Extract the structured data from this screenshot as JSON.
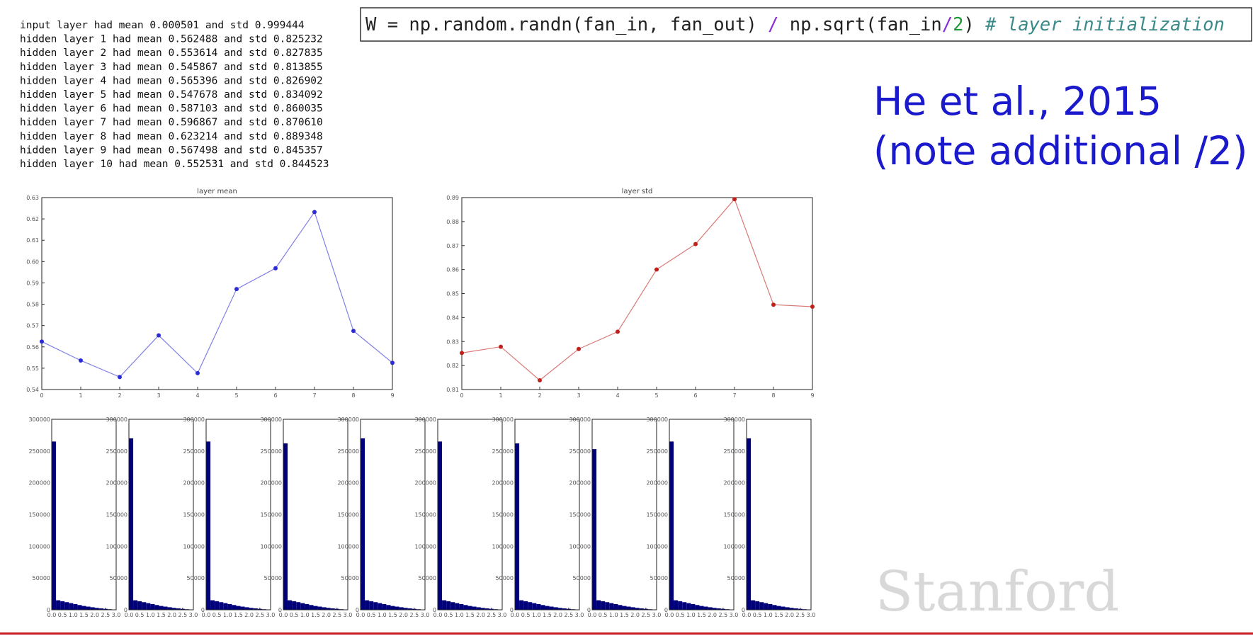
{
  "log": [
    "input layer had mean 0.000501 and std 0.999444",
    "hidden layer 1 had mean 0.562488 and std 0.825232",
    "hidden layer 2 had mean 0.553614 and std 0.827835",
    "hidden layer 3 had mean 0.545867 and std 0.813855",
    "hidden layer 4 had mean 0.565396 and std 0.826902",
    "hidden layer 5 had mean 0.547678 and std 0.834092",
    "hidden layer 6 had mean 0.587103 and std 0.860035",
    "hidden layer 7 had mean 0.596867 and std 0.870610",
    "hidden layer 8 had mean 0.623214 and std 0.889348",
    "hidden layer 9 had mean 0.567498 and std 0.845357",
    "hidden layer 10 had mean 0.552531 and std 0.844523"
  ],
  "code": [
    "W = np.random.randn(fan_in, fan_out) ",
    "/",
    " np.sqrt(fan_in",
    "/",
    "2",
    ")",
    " # layer initialization"
  ],
  "note": [
    "He et al., 2015",
    "(note additional /2)"
  ],
  "logo": "Stanford",
  "chart_data": [
    {
      "type": "line",
      "title": "layer mean",
      "x": [
        0,
        1,
        2,
        3,
        4,
        5,
        6,
        7,
        8,
        9
      ],
      "values": [
        0.562488,
        0.553614,
        0.545867,
        0.565396,
        0.547678,
        0.587103,
        0.596867,
        0.623214,
        0.567498,
        0.552531
      ],
      "color": "#2b2bd6",
      "xlim": [
        0,
        9
      ],
      "xticks": [
        0,
        1,
        2,
        3,
        4,
        5,
        6,
        7,
        8,
        9
      ],
      "ylim": [
        0.54,
        0.63
      ],
      "yticks": [
        0.54,
        0.55,
        0.56,
        0.57,
        0.58,
        0.59,
        {
          "value": 0.6,
          "label": "0.60"
        },
        0.61,
        0.62,
        0.63
      ]
    },
    {
      "type": "line",
      "title": "layer std",
      "x": [
        0,
        1,
        2,
        3,
        4,
        5,
        6,
        7,
        8,
        9
      ],
      "values": [
        0.825232,
        0.827835,
        0.813855,
        0.826902,
        0.834092,
        0.860035,
        0.87061,
        0.889348,
        0.845357,
        0.844523
      ],
      "color": "#c0201a",
      "xlim": [
        0,
        9
      ],
      "xticks": [
        0,
        1,
        2,
        3,
        4,
        5,
        6,
        7,
        8,
        9
      ],
      "ylim": [
        0.81,
        0.89
      ],
      "yticks": [
        0.81,
        0.82,
        0.83,
        0.84,
        0.85,
        0.86,
        0.87,
        0.88,
        0.89
      ]
    },
    {
      "type": "histogram",
      "bins": [
        0,
        0.2,
        0.4,
        0.6,
        0.8,
        1,
        1.2,
        1.4,
        1.6,
        1.8,
        2,
        2.2,
        2.4,
        2.6,
        2.8,
        3
      ],
      "values": [
        265000,
        15000,
        13500,
        12000,
        10500,
        9000,
        7500,
        6000,
        5000,
        4000,
        3000,
        2200,
        1500,
        900,
        400
      ],
      "color": "#00007a",
      "xlim": [
        0,
        3
      ],
      "ylim": [
        0,
        300000
      ],
      "xticks": [
        {
          "value": 0,
          "label": "0.0"
        },
        {
          "value": 0.5,
          "label": "0.5"
        },
        {
          "value": 1,
          "label": "1.0"
        },
        {
          "value": 1.5,
          "label": "1.5"
        },
        {
          "value": 2,
          "label": "2.0"
        },
        {
          "value": 2.5,
          "label": "2.5"
        },
        {
          "value": 3,
          "label": "3.0"
        }
      ],
      "yticks": [
        0,
        50000,
        100000,
        150000,
        200000,
        250000,
        300000
      ]
    },
    {
      "type": "histogram",
      "bins": [
        0,
        0.2,
        0.4,
        0.6,
        0.8,
        1,
        1.2,
        1.4,
        1.6,
        1.8,
        2,
        2.2,
        2.4,
        2.6,
        2.8,
        3
      ],
      "values": [
        270000,
        15000,
        13500,
        12000,
        10500,
        9000,
        7500,
        6000,
        5000,
        4000,
        3000,
        2200,
        1500,
        900,
        400
      ],
      "color": "#00007a",
      "xlim": [
        0,
        3
      ],
      "ylim": [
        0,
        300000
      ],
      "xticks": [
        {
          "value": 0,
          "label": "0.0"
        },
        {
          "value": 0.5,
          "label": "0.5"
        },
        {
          "value": 1,
          "label": "1.0"
        },
        {
          "value": 1.5,
          "label": "1.5"
        },
        {
          "value": 2,
          "label": "2.0"
        },
        {
          "value": 2.5,
          "label": "2.5"
        },
        {
          "value": 3,
          "label": "3.0"
        }
      ],
      "yticks": [
        0,
        50000,
        100000,
        150000,
        200000,
        250000,
        300000
      ]
    },
    {
      "type": "histogram",
      "bins": [
        0,
        0.2,
        0.4,
        0.6,
        0.8,
        1,
        1.2,
        1.4,
        1.6,
        1.8,
        2,
        2.2,
        2.4,
        2.6,
        2.8,
        3
      ],
      "values": [
        265000,
        15000,
        13500,
        12000,
        10500,
        9000,
        7500,
        6000,
        5000,
        4000,
        3000,
        2200,
        1500,
        900,
        400
      ],
      "color": "#00007a",
      "xlim": [
        0,
        3
      ],
      "ylim": [
        0,
        300000
      ],
      "xticks": [
        {
          "value": 0,
          "label": "0.0"
        },
        {
          "value": 0.5,
          "label": "0.5"
        },
        {
          "value": 1,
          "label": "1.0"
        },
        {
          "value": 1.5,
          "label": "1.5"
        },
        {
          "value": 2,
          "label": "2.0"
        },
        {
          "value": 2.5,
          "label": "2.5"
        },
        {
          "value": 3,
          "label": "3.0"
        }
      ],
      "yticks": [
        0,
        50000,
        100000,
        150000,
        200000,
        250000,
        300000
      ]
    },
    {
      "type": "histogram",
      "bins": [
        0,
        0.2,
        0.4,
        0.6,
        0.8,
        1,
        1.2,
        1.4,
        1.6,
        1.8,
        2,
        2.2,
        2.4,
        2.6,
        2.8,
        3
      ],
      "values": [
        262000,
        15000,
        13500,
        12000,
        10500,
        9000,
        7500,
        6000,
        5000,
        4000,
        3000,
        2200,
        1500,
        900,
        400
      ],
      "color": "#00007a",
      "xlim": [
        0,
        3
      ],
      "ylim": [
        0,
        300000
      ],
      "xticks": [
        {
          "value": 0,
          "label": "0.0"
        },
        {
          "value": 0.5,
          "label": "0.5"
        },
        {
          "value": 1,
          "label": "1.0"
        },
        {
          "value": 1.5,
          "label": "1.5"
        },
        {
          "value": 2,
          "label": "2.0"
        },
        {
          "value": 2.5,
          "label": "2.5"
        },
        {
          "value": 3,
          "label": "3.0"
        }
      ],
      "yticks": [
        0,
        50000,
        100000,
        150000,
        200000,
        250000,
        300000
      ]
    },
    {
      "type": "histogram",
      "bins": [
        0,
        0.2,
        0.4,
        0.6,
        0.8,
        1,
        1.2,
        1.4,
        1.6,
        1.8,
        2,
        2.2,
        2.4,
        2.6,
        2.8,
        3
      ],
      "values": [
        270000,
        15000,
        13500,
        12000,
        10500,
        9000,
        7500,
        6000,
        5000,
        4000,
        3000,
        2200,
        1500,
        900,
        400
      ],
      "color": "#00007a",
      "xlim": [
        0,
        3
      ],
      "ylim": [
        0,
        300000
      ],
      "xticks": [
        {
          "value": 0,
          "label": "0.0"
        },
        {
          "value": 0.5,
          "label": "0.5"
        },
        {
          "value": 1,
          "label": "1.0"
        },
        {
          "value": 1.5,
          "label": "1.5"
        },
        {
          "value": 2,
          "label": "2.0"
        },
        {
          "value": 2.5,
          "label": "2.5"
        },
        {
          "value": 3,
          "label": "3.0"
        }
      ],
      "yticks": [
        0,
        50000,
        100000,
        150000,
        200000,
        250000,
        300000
      ]
    },
    {
      "type": "histogram",
      "bins": [
        0,
        0.2,
        0.4,
        0.6,
        0.8,
        1,
        1.2,
        1.4,
        1.6,
        1.8,
        2,
        2.2,
        2.4,
        2.6,
        2.8,
        3
      ],
      "values": [
        265000,
        15000,
        13500,
        12000,
        10500,
        9000,
        7500,
        6000,
        5000,
        4000,
        3000,
        2200,
        1500,
        900,
        400
      ],
      "color": "#00007a",
      "xlim": [
        0,
        3
      ],
      "ylim": [
        0,
        300000
      ],
      "xticks": [
        {
          "value": 0,
          "label": "0.0"
        },
        {
          "value": 0.5,
          "label": "0.5"
        },
        {
          "value": 1,
          "label": "1.0"
        },
        {
          "value": 1.5,
          "label": "1.5"
        },
        {
          "value": 2,
          "label": "2.0"
        },
        {
          "value": 2.5,
          "label": "2.5"
        },
        {
          "value": 3,
          "label": "3.0"
        }
      ],
      "yticks": [
        0,
        50000,
        100000,
        150000,
        200000,
        250000,
        300000
      ]
    },
    {
      "type": "histogram",
      "bins": [
        0,
        0.2,
        0.4,
        0.6,
        0.8,
        1,
        1.2,
        1.4,
        1.6,
        1.8,
        2,
        2.2,
        2.4,
        2.6,
        2.8,
        3
      ],
      "values": [
        262000,
        15000,
        13500,
        12000,
        10500,
        9000,
        7500,
        6000,
        5000,
        4000,
        3000,
        2200,
        1500,
        900,
        400
      ],
      "color": "#00007a",
      "xlim": [
        0,
        3
      ],
      "ylim": [
        0,
        300000
      ],
      "xticks": [
        {
          "value": 0,
          "label": "0.0"
        },
        {
          "value": 0.5,
          "label": "0.5"
        },
        {
          "value": 1,
          "label": "1.0"
        },
        {
          "value": 1.5,
          "label": "1.5"
        },
        {
          "value": 2,
          "label": "2.0"
        },
        {
          "value": 2.5,
          "label": "2.5"
        },
        {
          "value": 3,
          "label": "3.0"
        }
      ],
      "yticks": [
        0,
        50000,
        100000,
        150000,
        200000,
        250000,
        300000
      ]
    },
    {
      "type": "histogram",
      "bins": [
        0,
        0.2,
        0.4,
        0.6,
        0.8,
        1,
        1.2,
        1.4,
        1.6,
        1.8,
        2,
        2.2,
        2.4,
        2.6,
        2.8,
        3
      ],
      "values": [
        253000,
        15000,
        13500,
        12000,
        10500,
        9000,
        7500,
        6000,
        5000,
        4000,
        3000,
        2200,
        1500,
        900,
        400
      ],
      "color": "#00007a",
      "xlim": [
        0,
        3
      ],
      "ylim": [
        0,
        300000
      ],
      "xticks": [
        {
          "value": 0,
          "label": "0.0"
        },
        {
          "value": 0.5,
          "label": "0.5"
        },
        {
          "value": 1,
          "label": "1.0"
        },
        {
          "value": 1.5,
          "label": "1.5"
        },
        {
          "value": 2,
          "label": "2.0"
        },
        {
          "value": 2.5,
          "label": "2.5"
        },
        {
          "value": 3,
          "label": "3.0"
        }
      ],
      "yticks": [
        0,
        50000,
        100000,
        150000,
        200000,
        250000,
        300000
      ]
    },
    {
      "type": "histogram",
      "bins": [
        0,
        0.2,
        0.4,
        0.6,
        0.8,
        1,
        1.2,
        1.4,
        1.6,
        1.8,
        2,
        2.2,
        2.4,
        2.6,
        2.8,
        3
      ],
      "values": [
        265000,
        15000,
        13500,
        12000,
        10500,
        9000,
        7500,
        6000,
        5000,
        4000,
        3000,
        2200,
        1500,
        900,
        400
      ],
      "color": "#00007a",
      "xlim": [
        0,
        3
      ],
      "ylim": [
        0,
        300000
      ],
      "xticks": [
        {
          "value": 0,
          "label": "0.0"
        },
        {
          "value": 0.5,
          "label": "0.5"
        },
        {
          "value": 1,
          "label": "1.0"
        },
        {
          "value": 1.5,
          "label": "1.5"
        },
        {
          "value": 2,
          "label": "2.0"
        },
        {
          "value": 2.5,
          "label": "2.5"
        },
        {
          "value": 3,
          "label": "3.0"
        }
      ],
      "yticks": [
        0,
        50000,
        100000,
        150000,
        200000,
        250000,
        300000
      ]
    },
    {
      "type": "histogram",
      "bins": [
        0,
        0.2,
        0.4,
        0.6,
        0.8,
        1,
        1.2,
        1.4,
        1.6,
        1.8,
        2,
        2.2,
        2.4,
        2.6,
        2.8,
        3
      ],
      "values": [
        270000,
        15000,
        13500,
        12000,
        10500,
        9000,
        7500,
        6000,
        5000,
        4000,
        3000,
        2200,
        1500,
        900,
        400
      ],
      "color": "#00007a",
      "xlim": [
        0,
        3
      ],
      "ylim": [
        0,
        300000
      ],
      "xticks": [
        {
          "value": 0,
          "label": "0.0"
        },
        {
          "value": 0.5,
          "label": "0.5"
        },
        {
          "value": 1,
          "label": "1.0"
        },
        {
          "value": 1.5,
          "label": "1.5"
        },
        {
          "value": 2,
          "label": "2.0"
        },
        {
          "value": 2.5,
          "label": "2.5"
        },
        {
          "value": 3,
          "label": "3.0"
        }
      ],
      "yticks": [
        0,
        50000,
        100000,
        150000,
        200000,
        250000,
        300000
      ]
    }
  ]
}
